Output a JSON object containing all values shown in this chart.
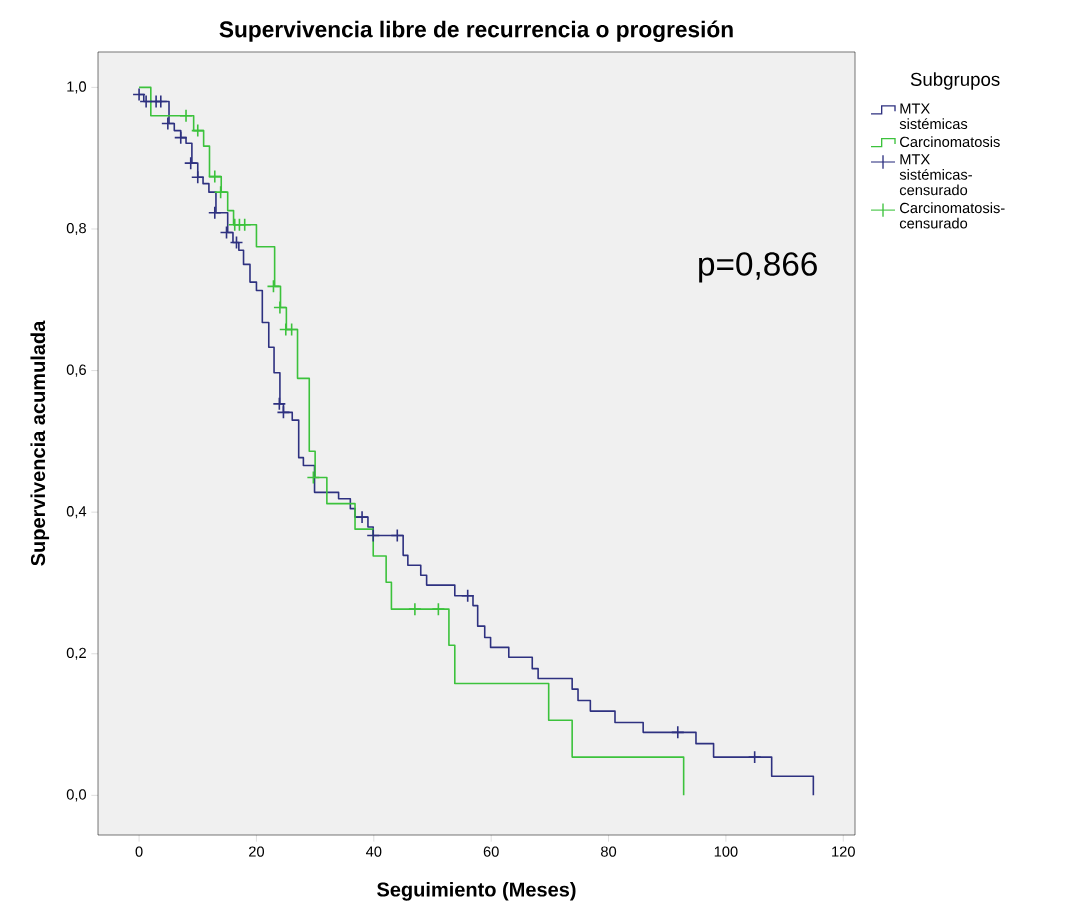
{
  "chart_data": {
    "type": "step",
    "title": "Supervivencia libre de recurrencia o progresión",
    "xlabel": "Seguimiento (Meses)",
    "ylabel": "Supervivencia acumulada",
    "legend_title": "Subgrupos",
    "legend": "right",
    "grid": false,
    "xlim": [
      -7,
      122
    ],
    "xticks": [
      0,
      20,
      40,
      60,
      80,
      100,
      120
    ],
    "ylim": [
      -0.056,
      1.05
    ],
    "yticks": [
      {
        "value": 0,
        "label": "0,0"
      },
      {
        "value": 0.2,
        "label": "0,2"
      },
      {
        "value": 0.4,
        "label": "0,4"
      },
      {
        "value": 0.6,
        "label": "0,6"
      },
      {
        "value": 0.8,
        "label": "0,8"
      },
      {
        "value": 1,
        "label": "1,0"
      }
    ],
    "annotations": [
      "p=0,866"
    ],
    "series": [
      {
        "name": "MTX sistémicas",
        "color": "#2e3180",
        "x": [
          0,
          0.8,
          5.1,
          6,
          7.1,
          8,
          9,
          10,
          10.9,
          11.9,
          13.1,
          15.1,
          16,
          17,
          17.8,
          18.9,
          20,
          21,
          22.1,
          23,
          24,
          24.6,
          26.1,
          27.2,
          28,
          29.9,
          34,
          36,
          36.8,
          39,
          39.9,
          45,
          45.8,
          48,
          49,
          53.8,
          56.9,
          57.7,
          58.9,
          59.9,
          63,
          67,
          68,
          73.8,
          74.8,
          76.9,
          81.1,
          85.9,
          94.9,
          97.9,
          107.8,
          114.9
        ],
        "values": [
          0.99,
          0.98,
          0.949,
          0.939,
          0.929,
          0.921,
          0.893,
          0.873,
          0.864,
          0.852,
          0.823,
          0.795,
          0.781,
          0.77,
          0.75,
          0.725,
          0.713,
          0.668,
          0.633,
          0.597,
          0.553,
          0.541,
          0.53,
          0.477,
          0.466,
          0.428,
          0.419,
          0.405,
          0.393,
          0.379,
          0.367,
          0.339,
          0.325,
          0.311,
          0.297,
          0.282,
          0.268,
          0.239,
          0.223,
          0.209,
          0.195,
          0.179,
          0.165,
          0.15,
          0.134,
          0.119,
          0.103,
          0.089,
          0.073,
          0.054,
          0.027,
          0
        ]
      },
      {
        "name": "Carcinomatosis",
        "color": "#3cc23c",
        "x": [
          0,
          2,
          9.3,
          11,
          12,
          14,
          15.1,
          16.1,
          20,
          23.1,
          24.1,
          25.1,
          27,
          29,
          30,
          32,
          36.8,
          39.9,
          42.1,
          43,
          52.8,
          53.8,
          69.8,
          73.8,
          92.8
        ],
        "values": [
          1,
          0.96,
          0.939,
          0.917,
          0.874,
          0.852,
          0.826,
          0.806,
          0.775,
          0.719,
          0.689,
          0.658,
          0.589,
          0.486,
          0.449,
          0.412,
          0.376,
          0.338,
          0.301,
          0.263,
          0.212,
          0.158,
          0.106,
          0.054,
          0
        ]
      },
      {
        "name": "MTX sistémicas-censurado",
        "type": "scatter",
        "marker": "cross",
        "color": "#2e3180",
        "x": [
          0,
          1.2,
          2.9,
          3.7,
          4.9,
          7.1,
          8.8,
          10,
          12.9,
          14.9,
          16.6,
          23.9,
          24.6,
          38,
          39.9,
          44,
          56,
          91.8,
          104.9
        ],
        "values": [
          0.99,
          0.98,
          0.98,
          0.98,
          0.949,
          0.929,
          0.893,
          0.873,
          0.823,
          0.795,
          0.781,
          0.553,
          0.541,
          0.393,
          0.367,
          0.367,
          0.282,
          0.089,
          0.054
        ]
      },
      {
        "name": "Carcinomatosis-censurado",
        "type": "scatter",
        "marker": "cross",
        "color": "#3cc23c",
        "x": [
          8,
          10,
          12.9,
          13.9,
          16.3,
          17.1,
          18,
          22.9,
          24,
          25,
          26,
          29.7,
          47,
          51
        ],
        "values": [
          0.96,
          0.939,
          0.874,
          0.852,
          0.806,
          0.806,
          0.806,
          0.719,
          0.689,
          0.658,
          0.658,
          0.449,
          0.263,
          0.263
        ]
      }
    ]
  }
}
